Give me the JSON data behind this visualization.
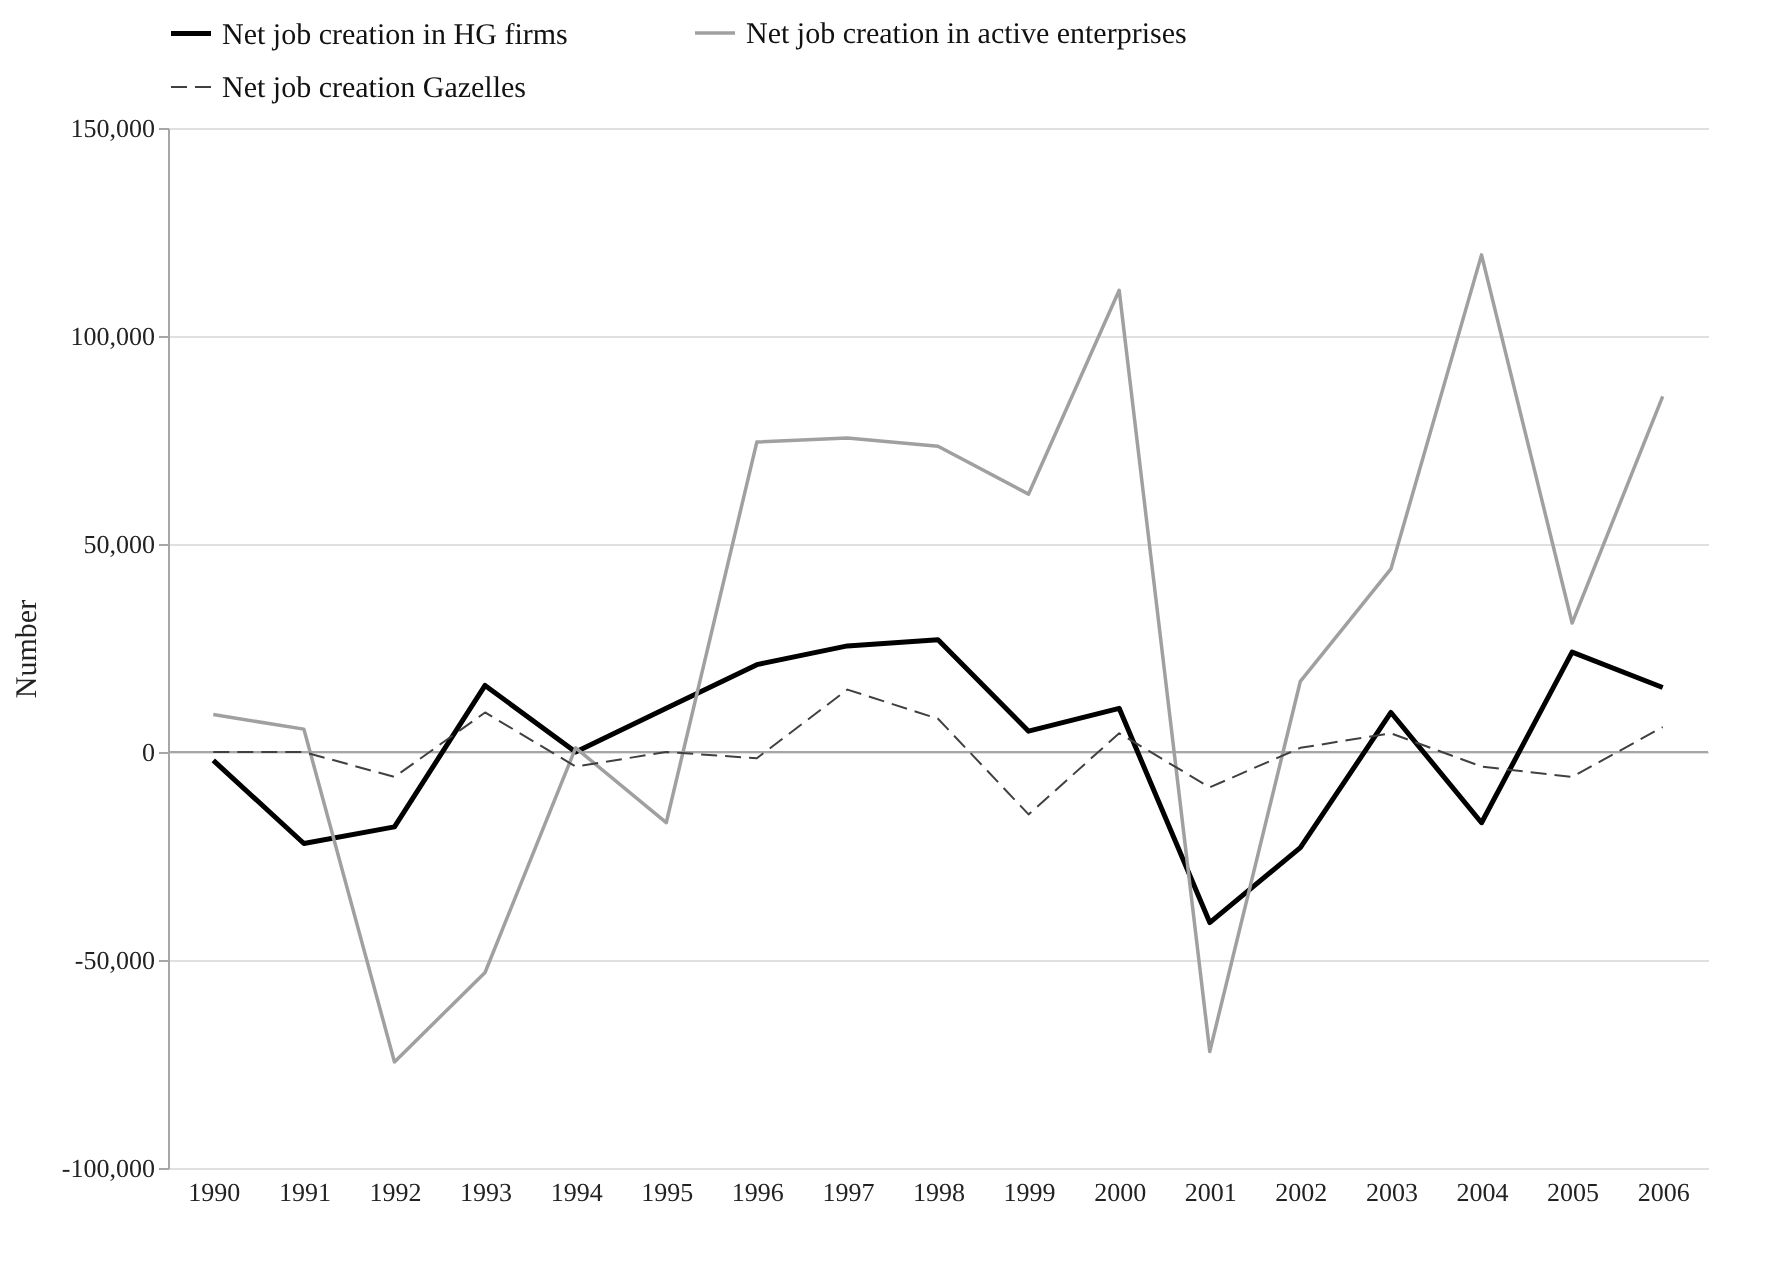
{
  "chart_data": {
    "type": "line",
    "ylabel": "Number",
    "categories": [
      "1990",
      "1991",
      "1992",
      "1993",
      "1994",
      "1995",
      "1996",
      "1997",
      "1998",
      "1999",
      "2000",
      "2001",
      "2002",
      "2003",
      "2004",
      "2005",
      "2006"
    ],
    "series": [
      {
        "name": "Net job creation in HG firms",
        "color": "#000000",
        "line_style": "solid",
        "values": [
          -2000,
          -22000,
          -18000,
          16000,
          0,
          10500,
          21000,
          25500,
          27000,
          5000,
          10500,
          -41000,
          -23000,
          9500,
          -17000,
          24000,
          15500
        ]
      },
      {
        "name": "Net job creation in active enterprises",
        "color": "#a0a0a0",
        "line_style": "solid",
        "values": [
          9000,
          5500,
          -74500,
          -53000,
          1000,
          -17000,
          74500,
          75500,
          73500,
          62000,
          111000,
          -72000,
          17000,
          44000,
          119500,
          31000,
          85500
        ]
      },
      {
        "name": "Net job creation Gazelles",
        "color": "#404040",
        "line_style": "dashed",
        "values": [
          0,
          0,
          -6000,
          9500,
          -3500,
          0,
          -1500,
          15000,
          8000,
          -15000,
          4500,
          -8500,
          1000,
          4500,
          -3500,
          -6000,
          6000
        ]
      }
    ],
    "ylim": [
      -100000,
      150000
    ],
    "yticks": [
      {
        "value": -100000,
        "label": "-100,000"
      },
      {
        "value": -50000,
        "label": "-50,000"
      },
      0,
      {
        "value": 50000,
        "label": "50,000"
      },
      {
        "value": 100000,
        "label": "100,000"
      },
      {
        "value": 150000,
        "label": "150,000"
      }
    ],
    "grid": "y",
    "legend": "top",
    "marker": "none"
  }
}
